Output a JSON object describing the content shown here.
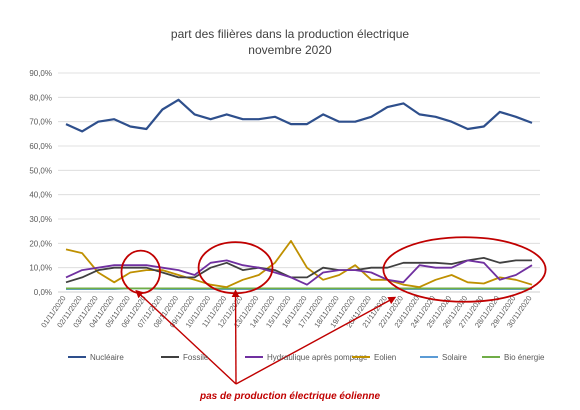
{
  "colors": {
    "nucleaire": "#2e4f8c",
    "fossile": "#404040",
    "hydraulique": "#7030a0",
    "eolien": "#bf9000",
    "solaire": "#5b9bd5",
    "bio_energie": "#70ad47",
    "annotation": "#c00000",
    "grid": "#d9d9d9"
  },
  "chart_data": {
    "type": "line",
    "title": [
      "part des filières dans la production électrique",
      "novembre 2020"
    ],
    "xlabel": "",
    "ylabel": "",
    "ylim": [
      0,
      0.9
    ],
    "yticks": [
      "0,0%",
      "10,0%",
      "20,0%",
      "30,0%",
      "40,0%",
      "50,0%",
      "60,0%",
      "70,0%",
      "80,0%",
      "90,0%"
    ],
    "grid": true,
    "legend_position": "bottom",
    "categories": [
      "01/11/2020",
      "02/11/2020",
      "03/11/2020",
      "04/11/2020",
      "05/11/2020",
      "06/11/2020",
      "07/11/2020",
      "08/11/2020",
      "09/11/2020",
      "10/11/2020",
      "11/11/2020",
      "12/11/2020",
      "13/11/2020",
      "14/11/2020",
      "15/11/2020",
      "16/11/2020",
      "17/11/2020",
      "18/11/2020",
      "19/11/2020",
      "20/11/2020",
      "21/11/2020",
      "22/11/2020",
      "23/11/2020",
      "24/11/2020",
      "25/11/2020",
      "26/11/2020",
      "27/11/2020",
      "28/11/2020",
      "29/11/2020",
      "30/11/2020"
    ],
    "series": [
      {
        "name": "Nucléaire",
        "color_key": "nucleaire",
        "values": [
          0.69,
          0.66,
          0.7,
          0.71,
          0.68,
          0.67,
          0.75,
          0.79,
          0.73,
          0.71,
          0.73,
          0.71,
          0.71,
          0.72,
          0.69,
          0.69,
          0.73,
          0.7,
          0.7,
          0.72,
          0.76,
          0.775,
          0.73,
          0.72,
          0.7,
          0.67,
          0.68,
          0.74,
          0.72,
          0.695
        ]
      },
      {
        "name": "Fossile",
        "color_key": "fossile",
        "values": [
          0.04,
          0.06,
          0.09,
          0.1,
          0.1,
          0.1,
          0.08,
          0.06,
          0.06,
          0.1,
          0.12,
          0.09,
          0.1,
          0.09,
          0.06,
          0.06,
          0.1,
          0.09,
          0.09,
          0.1,
          0.1,
          0.12,
          0.12,
          0.12,
          0.115,
          0.13,
          0.14,
          0.12,
          0.13,
          0.13
        ]
      },
      {
        "name": "Hydraulique après pompage",
        "color_key": "hydraulique",
        "values": [
          0.06,
          0.09,
          0.1,
          0.11,
          0.11,
          0.11,
          0.1,
          0.09,
          0.07,
          0.12,
          0.13,
          0.11,
          0.1,
          0.08,
          0.06,
          0.03,
          0.08,
          0.09,
          0.09,
          0.08,
          0.05,
          0.04,
          0.11,
          0.1,
          0.1,
          0.13,
          0.12,
          0.05,
          0.07,
          0.11
        ]
      },
      {
        "name": "Eolien",
        "color_key": "eolien",
        "values": [
          0.175,
          0.16,
          0.08,
          0.04,
          0.08,
          0.09,
          0.09,
          0.07,
          0.05,
          0.03,
          0.02,
          0.05,
          0.07,
          0.12,
          0.21,
          0.1,
          0.05,
          0.07,
          0.11,
          0.05,
          0.05,
          0.03,
          0.02,
          0.05,
          0.07,
          0.04,
          0.035,
          0.06,
          0.05,
          0.03
        ]
      },
      {
        "name": "Solaire",
        "color_key": "solaire",
        "values": [
          0.012,
          0.012,
          0.012,
          0.012,
          0.015,
          0.015,
          0.012,
          0.012,
          0.012,
          0.012,
          0.012,
          0.012,
          0.012,
          0.012,
          0.012,
          0.012,
          0.012,
          0.012,
          0.012,
          0.012,
          0.012,
          0.012,
          0.012,
          0.012,
          0.012,
          0.012,
          0.012,
          0.012,
          0.012,
          0.012
        ]
      },
      {
        "name": "Bio énergie",
        "color_key": "bio_energie",
        "values": [
          0.015,
          0.015,
          0.015,
          0.015,
          0.015,
          0.015,
          0.015,
          0.015,
          0.015,
          0.015,
          0.015,
          0.015,
          0.015,
          0.015,
          0.015,
          0.015,
          0.015,
          0.015,
          0.015,
          0.015,
          0.015,
          0.015,
          0.015,
          0.015,
          0.015,
          0.015,
          0.015,
          0.015,
          0.015,
          0.015
        ]
      }
    ],
    "annotations": [
      {
        "text": "pas de production électrique éolienne",
        "highlighted_days": [
          "04/11/2020 – 06/11/2020",
          "09/11/2020 – 12/11/2020",
          "21/11/2020 – 30/11/2020"
        ]
      }
    ]
  }
}
